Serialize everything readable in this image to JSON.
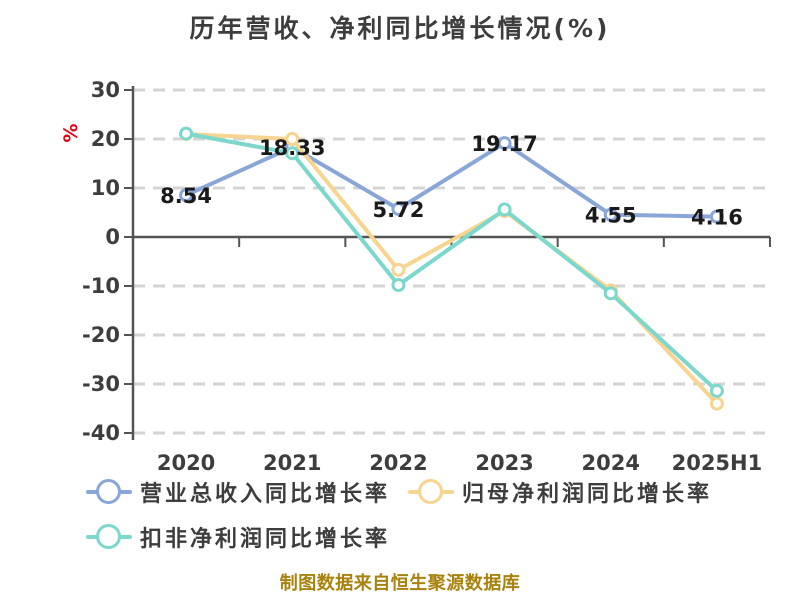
{
  "chart_data": {
    "type": "line",
    "title": "历年营收、净利同比增长情况(%)",
    "y_unit": "%",
    "y_unit_color": "#e60012",
    "categories": [
      "2020",
      "2021",
      "2022",
      "2023",
      "2024",
      "2025H1"
    ],
    "series": [
      {
        "name": "营业总收入同比增长率",
        "color": "#89a6d8",
        "values": [
          8.54,
          18.33,
          5.72,
          19.17,
          4.55,
          4.16
        ],
        "data_labels": [
          "8.54",
          "18.33",
          "5.72",
          "19.17",
          "4.55",
          "4.16"
        ]
      },
      {
        "name": "归母净利润同比增长率",
        "color": "#f8d491",
        "values": [
          21.0,
          20.0,
          -6.7,
          5.3,
          -10.9,
          -34.0
        ],
        "data_labels": null
      },
      {
        "name": "扣非净利润同比增长率",
        "color": "#7cd7cc",
        "values": [
          21.1,
          17.1,
          -9.8,
          5.6,
          -11.5,
          -31.4
        ],
        "data_labels": null
      }
    ],
    "ylim": [
      -40,
      30
    ],
    "ytick_step": 10,
    "grid": "horizontal-dashed",
    "grid_color": "#d4d4d4",
    "axis_color": "#545454",
    "legend_position": "bottom-left",
    "marker_style": "hollow-circle"
  },
  "footer": {
    "note": "制图数据来自恒生聚源数据库",
    "color": "#a9820e"
  }
}
